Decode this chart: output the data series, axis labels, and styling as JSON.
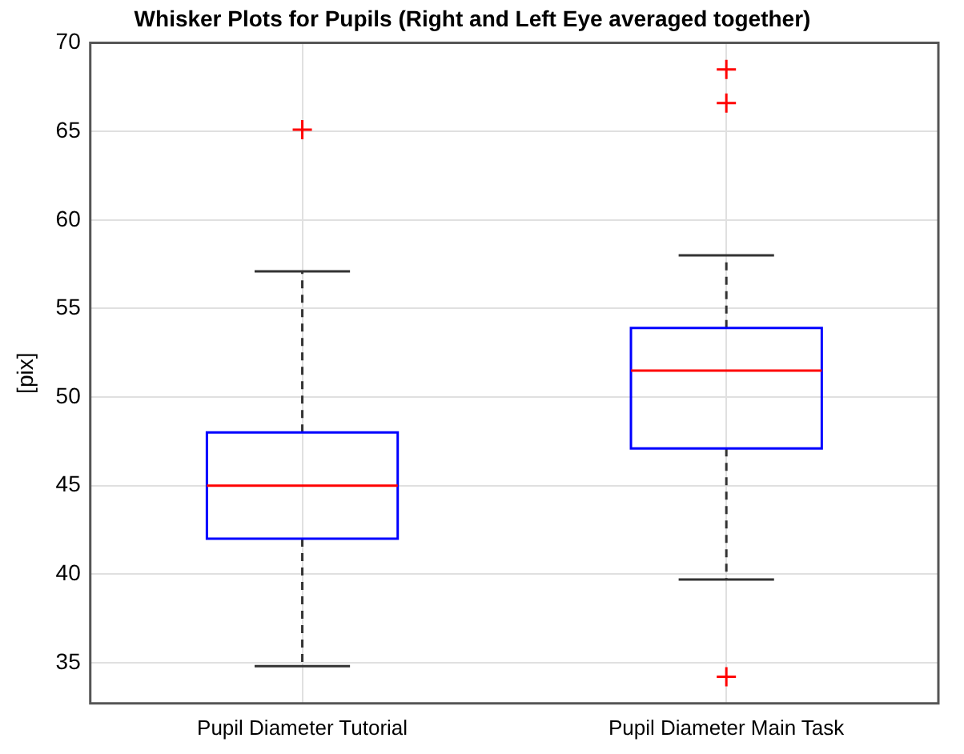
{
  "chart_data": {
    "type": "box",
    "title": "Whisker Plots for Pupils (Right and Left Eye averaged together)",
    "ylabel": "[pix]",
    "categories": [
      "Pupil Diameter Tutorial",
      "Pupil Diameter Main Task"
    ],
    "boxes": [
      {
        "low": 34.8,
        "q1": 42,
        "median": 45,
        "q3": 48,
        "high": 57.1,
        "outliers": [
          65.1
        ]
      },
      {
        "low": 39.7,
        "q1": 47.1,
        "median": 51.5,
        "q3": 53.9,
        "high": 58,
        "outliers": [
          68.5,
          66.6,
          34.2
        ]
      }
    ],
    "color": "#0000ff",
    "ylim": [
      32.7,
      70
    ],
    "yticks": [
      35,
      40,
      45,
      50,
      55,
      60,
      65,
      70
    ],
    "grid": true,
    "legend": false,
    "marker": "cross"
  }
}
